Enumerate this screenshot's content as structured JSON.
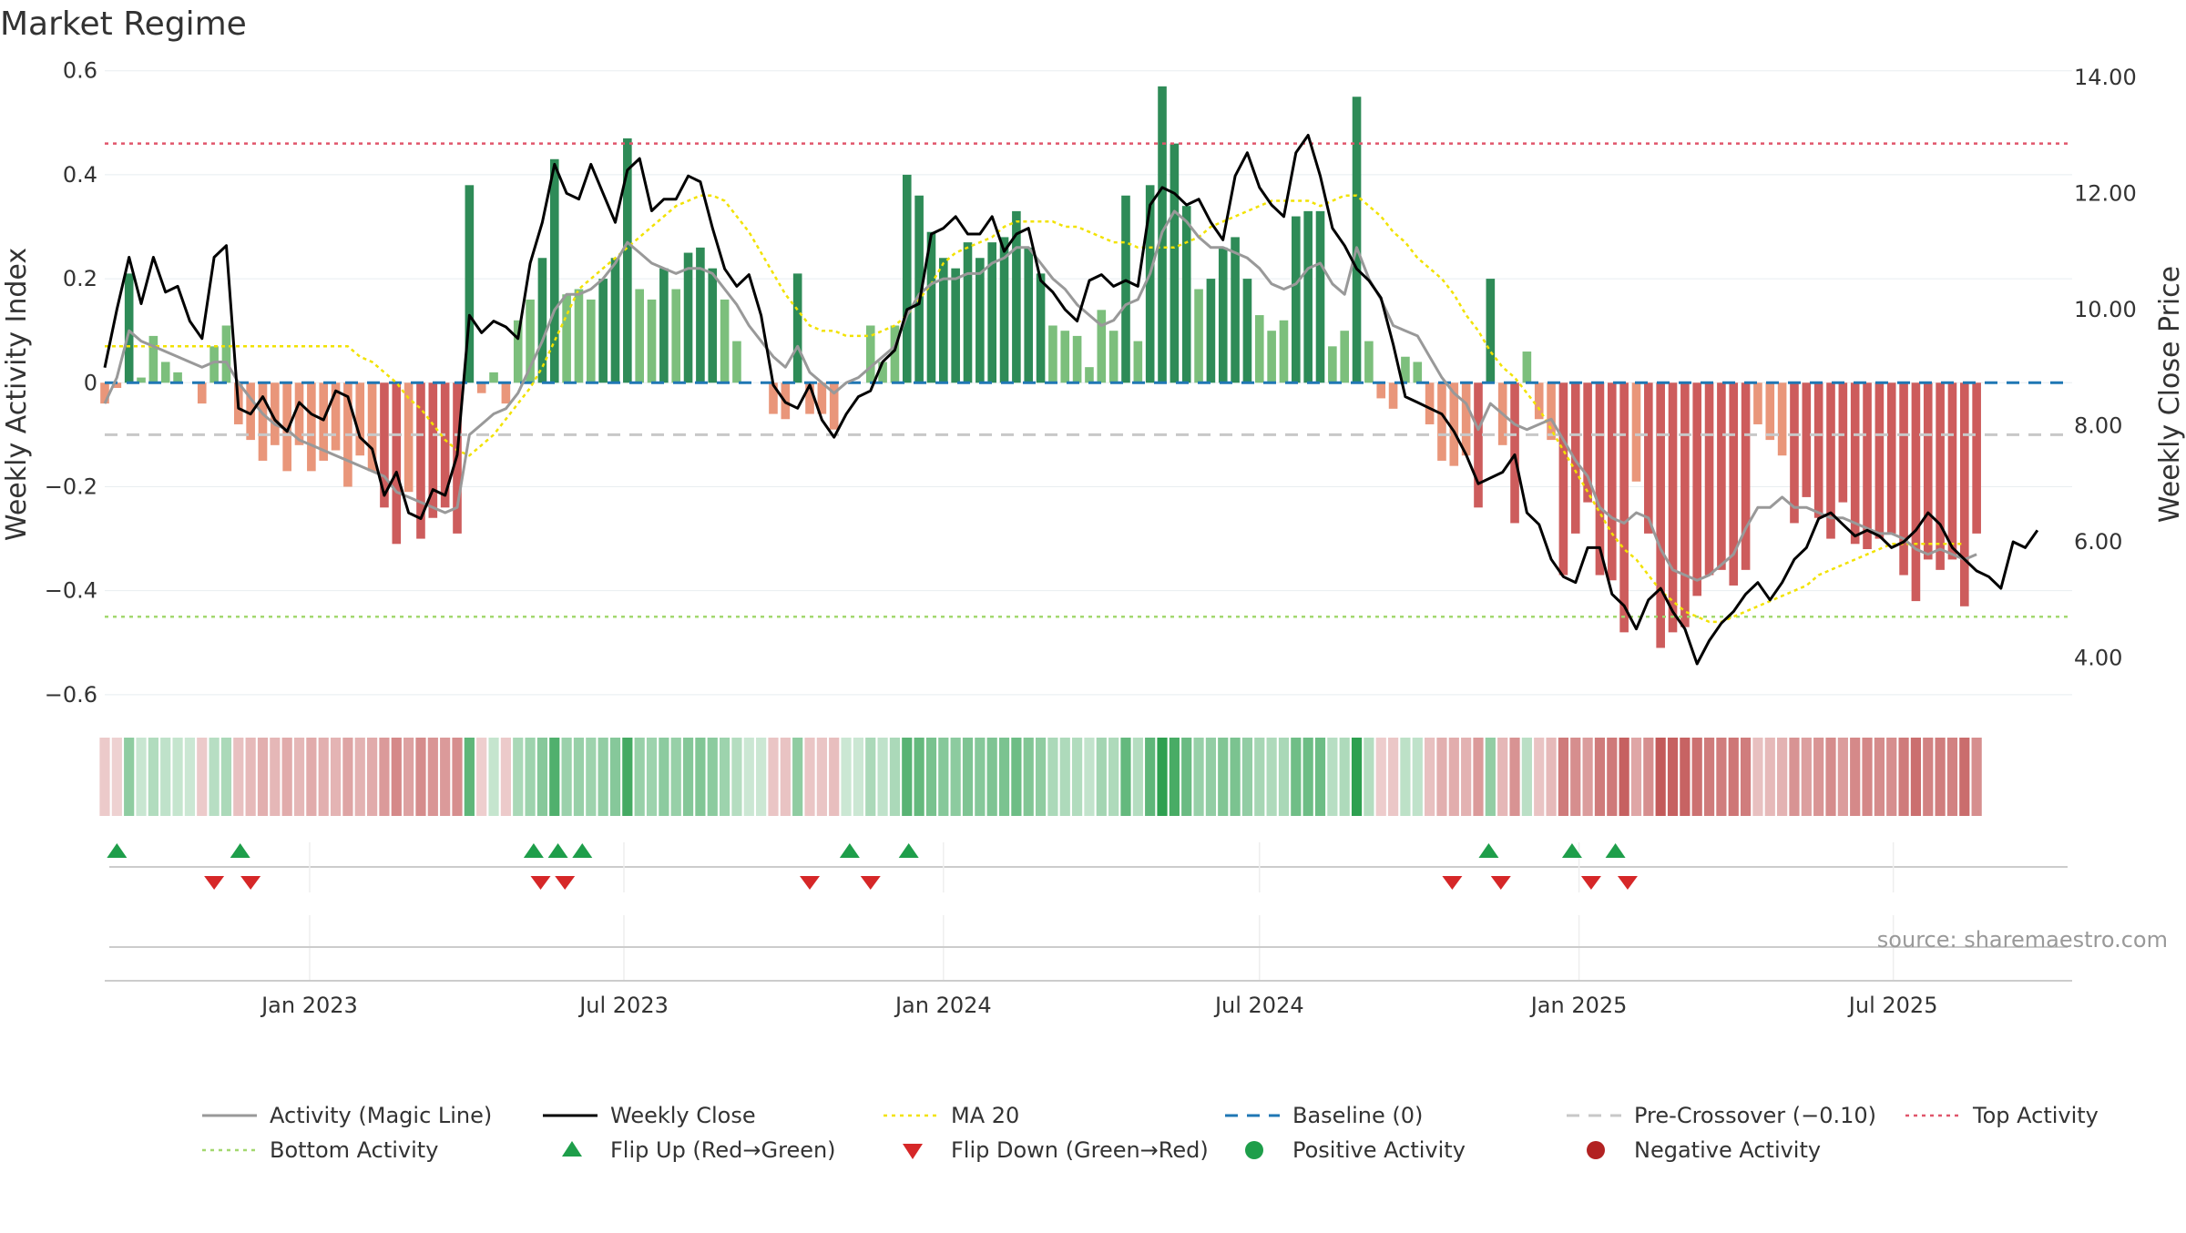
{
  "chart_data": {
    "type": "bar",
    "title": "Market Regime",
    "left_axis": {
      "label": "Weekly Activity Index",
      "ylim": [
        -0.63,
        0.61
      ],
      "ticks": [
        0.6,
        0.4,
        0.2,
        0,
        -0.2,
        -0.4,
        -0.6
      ],
      "tick_labels": [
        "0.6",
        "0.4",
        "0.2",
        "0",
        "−0.2",
        "−0.4",
        "−0.6"
      ]
    },
    "right_axis": {
      "label": "Weekly Close Price",
      "ylim": [
        3.1,
        14.2
      ],
      "ticks": [
        14,
        12,
        10,
        8,
        6,
        4
      ],
      "tick_labels": [
        "14.00",
        "12.00",
        "10.00",
        "8.00",
        "6.00",
        "4.00"
      ]
    },
    "x_axis": {
      "start": "2022-09-05",
      "end": "2025-10-12",
      "ticks": [
        {
          "label": "Jan 2023",
          "date": "2023-01-01"
        },
        {
          "label": "Jul 2023",
          "date": "2023-07-01"
        },
        {
          "label": "Jan 2024",
          "date": "2024-01-01"
        },
        {
          "label": "Jul 2024",
          "date": "2024-07-01"
        },
        {
          "label": "Jan 2025",
          "date": "2025-01-01"
        },
        {
          "label": "Jul 2025",
          "date": "2025-07-01"
        }
      ]
    },
    "first_week": "2022-09-05",
    "weekly_activity": [
      -0.04,
      -0.01,
      0.21,
      0.01,
      0.09,
      0.04,
      0.02,
      0.0,
      -0.04,
      0.07,
      0.11,
      -0.08,
      -0.11,
      -0.15,
      -0.12,
      -0.17,
      -0.12,
      -0.17,
      -0.15,
      -0.13,
      -0.2,
      -0.14,
      -0.17,
      -0.24,
      -0.31,
      -0.21,
      -0.3,
      -0.26,
      -0.24,
      -0.29,
      0.38,
      -0.02,
      0.02,
      -0.04,
      0.12,
      0.16,
      0.24,
      0.43,
      0.17,
      0.18,
      0.16,
      0.2,
      0.24,
      0.47,
      0.18,
      0.16,
      0.22,
      0.18,
      0.25,
      0.26,
      0.22,
      0.16,
      0.08,
      -0.0,
      0.0,
      -0.06,
      -0.07,
      0.21,
      -0.06,
      -0.06,
      -0.09,
      0.0,
      -0.0,
      0.11,
      0.04,
      0.11,
      0.4,
      0.36,
      0.29,
      0.24,
      0.22,
      0.27,
      0.24,
      0.27,
      0.28,
      0.33,
      0.26,
      0.21,
      0.11,
      0.1,
      0.09,
      0.03,
      0.14,
      0.1,
      0.36,
      0.08,
      0.38,
      0.57,
      0.46,
      0.34,
      0.18,
      0.2,
      0.26,
      0.28,
      0.2,
      0.13,
      0.1,
      0.12,
      0.32,
      0.33,
      0.33,
      0.07,
      0.1,
      0.55,
      0.08,
      -0.03,
      -0.05,
      0.05,
      0.04,
      -0.08,
      -0.15,
      -0.16,
      -0.14,
      -0.24,
      0.2,
      -0.12,
      -0.27,
      0.06,
      -0.07,
      -0.11,
      -0.37,
      -0.29,
      -0.23,
      -0.37,
      -0.38,
      -0.48,
      -0.19,
      -0.29,
      -0.51,
      -0.48,
      -0.47,
      -0.41,
      -0.37,
      -0.36,
      -0.39,
      -0.36,
      -0.08,
      -0.11,
      -0.14,
      -0.27,
      -0.22,
      -0.26,
      -0.3,
      -0.23,
      -0.31,
      -0.32,
      -0.3,
      -0.29,
      -0.37,
      -0.42,
      -0.34,
      -0.36,
      -0.34,
      -0.43,
      -0.29
    ],
    "weekly_close": [
      9.0,
      10.0,
      10.9,
      10.1,
      10.9,
      10.3,
      10.4,
      9.8,
      9.5,
      10.9,
      11.1,
      8.3,
      8.2,
      8.5,
      8.1,
      7.9,
      8.4,
      8.2,
      8.1,
      8.6,
      8.5,
      7.8,
      7.6,
      6.8,
      7.2,
      6.5,
      6.4,
      6.9,
      6.8,
      7.5,
      9.9,
      9.6,
      9.8,
      9.7,
      9.5,
      10.8,
      11.5,
      12.5,
      12.0,
      11.9,
      12.5,
      12.0,
      11.5,
      12.4,
      12.6,
      11.7,
      11.9,
      11.9,
      12.3,
      12.2,
      11.4,
      10.7,
      10.4,
      10.6,
      9.9,
      8.7,
      8.4,
      8.3,
      8.7,
      8.1,
      7.8,
      8.2,
      8.5,
      8.6,
      9.1,
      9.3,
      10.0,
      10.1,
      11.3,
      11.4,
      11.6,
      11.3,
      11.3,
      11.6,
      11.0,
      11.3,
      11.4,
      10.5,
      10.3,
      10.0,
      9.8,
      10.5,
      10.6,
      10.4,
      10.5,
      10.4,
      11.8,
      12.1,
      12.0,
      11.8,
      11.9,
      11.5,
      11.2,
      12.3,
      12.7,
      12.1,
      11.8,
      11.6,
      12.7,
      13.0,
      12.3,
      11.4,
      11.1,
      10.7,
      10.5,
      10.2,
      9.4,
      8.5,
      8.4,
      8.3,
      8.2,
      7.9,
      7.5,
      7.0,
      7.1,
      7.2,
      7.5,
      6.5,
      6.3,
      5.7,
      5.4,
      5.3,
      5.9,
      5.9,
      5.1,
      4.9,
      4.5,
      5.0,
      5.2,
      4.8,
      4.5,
      3.9,
      4.3,
      4.6,
      4.8,
      5.1,
      5.3,
      5.0,
      5.3,
      5.7,
      5.9,
      6.4,
      6.5,
      6.3,
      6.1,
      6.2,
      6.1,
      5.9,
      6.0,
      6.2,
      6.5,
      6.3,
      5.9,
      5.7,
      5.5,
      5.4,
      5.2,
      6.0,
      5.9,
      6.2
    ],
    "magic_line": [
      -0.04,
      0.01,
      0.1,
      0.08,
      0.07,
      0.06,
      0.05,
      0.04,
      0.03,
      0.04,
      0.04,
      0.0,
      -0.03,
      -0.06,
      -0.08,
      -0.09,
      -0.11,
      -0.12,
      -0.13,
      -0.14,
      -0.15,
      -0.16,
      -0.17,
      -0.18,
      -0.21,
      -0.22,
      -0.23,
      -0.24,
      -0.25,
      -0.24,
      -0.1,
      -0.08,
      -0.06,
      -0.05,
      -0.02,
      0.03,
      0.08,
      0.14,
      0.17,
      0.17,
      0.18,
      0.2,
      0.23,
      0.27,
      0.25,
      0.23,
      0.22,
      0.21,
      0.22,
      0.22,
      0.21,
      0.18,
      0.15,
      0.11,
      0.08,
      0.05,
      0.03,
      0.07,
      0.02,
      0.0,
      -0.02,
      0.0,
      0.01,
      0.03,
      0.05,
      0.07,
      0.13,
      0.17,
      0.19,
      0.2,
      0.2,
      0.21,
      0.21,
      0.23,
      0.24,
      0.26,
      0.26,
      0.23,
      0.2,
      0.18,
      0.15,
      0.13,
      0.11,
      0.12,
      0.15,
      0.16,
      0.21,
      0.29,
      0.33,
      0.31,
      0.28,
      0.26,
      0.26,
      0.25,
      0.24,
      0.22,
      0.19,
      0.18,
      0.19,
      0.22,
      0.23,
      0.19,
      0.17,
      0.26,
      0.2,
      0.16,
      0.11,
      0.1,
      0.09,
      0.05,
      0.01,
      -0.02,
      -0.04,
      -0.09,
      -0.04,
      -0.06,
      -0.08,
      -0.09,
      -0.08,
      -0.07,
      -0.11,
      -0.15,
      -0.18,
      -0.24,
      -0.26,
      -0.27,
      -0.25,
      -0.26,
      -0.32,
      -0.36,
      -0.37,
      -0.38,
      -0.37,
      -0.35,
      -0.33,
      -0.28,
      -0.24,
      -0.24,
      -0.22,
      -0.24,
      -0.24,
      -0.25,
      -0.26,
      -0.26,
      -0.27,
      -0.28,
      -0.29,
      -0.29,
      -0.3,
      -0.32,
      -0.33,
      -0.32,
      -0.33,
      -0.34,
      -0.33
    ],
    "ma20": [
      0.07,
      0.07,
      0.07,
      0.07,
      0.07,
      0.07,
      0.07,
      0.07,
      0.07,
      0.07,
      0.07,
      0.07,
      0.07,
      0.07,
      0.07,
      0.07,
      0.07,
      0.07,
      0.07,
      0.07,
      0.07,
      0.05,
      0.04,
      0.02,
      0.0,
      -0.03,
      -0.05,
      -0.08,
      -0.11,
      -0.13,
      -0.14,
      -0.12,
      -0.1,
      -0.07,
      -0.04,
      -0.01,
      0.03,
      0.08,
      0.13,
      0.18,
      0.2,
      0.22,
      0.24,
      0.26,
      0.28,
      0.3,
      0.32,
      0.34,
      0.35,
      0.36,
      0.36,
      0.35,
      0.32,
      0.29,
      0.25,
      0.21,
      0.17,
      0.14,
      0.11,
      0.1,
      0.1,
      0.09,
      0.09,
      0.09,
      0.1,
      0.11,
      0.13,
      0.16,
      0.19,
      0.23,
      0.25,
      0.26,
      0.27,
      0.28,
      0.3,
      0.31,
      0.31,
      0.31,
      0.31,
      0.3,
      0.3,
      0.29,
      0.28,
      0.27,
      0.27,
      0.26,
      0.26,
      0.26,
      0.26,
      0.27,
      0.28,
      0.3,
      0.31,
      0.32,
      0.33,
      0.34,
      0.35,
      0.35,
      0.35,
      0.35,
      0.34,
      0.35,
      0.36,
      0.36,
      0.34,
      0.32,
      0.29,
      0.27,
      0.24,
      0.22,
      0.2,
      0.17,
      0.13,
      0.1,
      0.06,
      0.03,
      0.01,
      -0.02,
      -0.05,
      -0.09,
      -0.13,
      -0.17,
      -0.21,
      -0.25,
      -0.29,
      -0.32,
      -0.34,
      -0.37,
      -0.4,
      -0.42,
      -0.44,
      -0.45,
      -0.46,
      -0.46,
      -0.45,
      -0.44,
      -0.43,
      -0.42,
      -0.41,
      -0.4,
      -0.39,
      -0.37,
      -0.36,
      -0.35,
      -0.34,
      -0.33,
      -0.32,
      -0.31,
      -0.31,
      -0.31,
      -0.31,
      -0.31,
      -0.31,
      -0.31
    ],
    "reference_lines": {
      "baseline": 0,
      "pre_crossover": -0.1,
      "top_activity": 0.46,
      "bottom_activity": -0.45
    },
    "flip_up_dates": [
      "2022-09-12",
      "2022-11-22",
      "2023-05-10",
      "2023-05-24",
      "2023-06-07",
      "2023-11-08",
      "2023-12-12",
      "2024-11-10",
      "2024-12-28",
      "2025-01-22"
    ],
    "flip_down_dates": [
      "2022-11-07",
      "2022-11-28",
      "2023-05-14",
      "2023-05-28",
      "2023-10-16",
      "2023-11-20",
      "2024-10-20",
      "2024-11-17",
      "2025-01-08",
      "2025-01-29"
    ],
    "colors": {
      "strong_green": "#2e8b57",
      "light_green": "#7cbf7c",
      "strong_red": "#cd5c5c",
      "light_red": "#e9967a",
      "close": "#000000",
      "magic": "#999999",
      "ma20": "#f2e200",
      "baseline": "#1f77b4",
      "pre_crossover": "#c8c8c8",
      "top": "#e0566b",
      "bottom": "#a3d86f",
      "flip_up": "#1e9e4a",
      "flip_down": "#d62728"
    },
    "legend": [
      {
        "label": "Activity (Magic Line)",
        "kind": "solid-line",
        "color": "#999999"
      },
      {
        "label": "Weekly Close",
        "kind": "solid-line",
        "color": "#000000"
      },
      {
        "label": "MA 20",
        "kind": "dotted-line",
        "color": "#f2e200"
      },
      {
        "label": "Baseline (0)",
        "kind": "dashed-line",
        "color": "#1f77b4"
      },
      {
        "label": "Pre-Crossover (−0.10)",
        "kind": "dashed-line",
        "color": "#c8c8c8"
      },
      {
        "label": "Top Activity",
        "kind": "dotted-line",
        "color": "#e0566b"
      },
      {
        "label": "Bottom Activity",
        "kind": "dotted-line",
        "color": "#a3d86f"
      },
      {
        "label": "Flip Up (Red→Green)",
        "kind": "triangle-up",
        "color": "#1e9e4a"
      },
      {
        "label": "Flip Down (Green→Red)",
        "kind": "triangle-down",
        "color": "#d62728"
      },
      {
        "label": "Positive Activity",
        "kind": "dot",
        "color": "#1e9e4a"
      },
      {
        "label": "Negative Activity",
        "kind": "dot",
        "color": "#b22222"
      }
    ],
    "legend_placement": "bottom",
    "source": "source: sharemaestro.com"
  }
}
